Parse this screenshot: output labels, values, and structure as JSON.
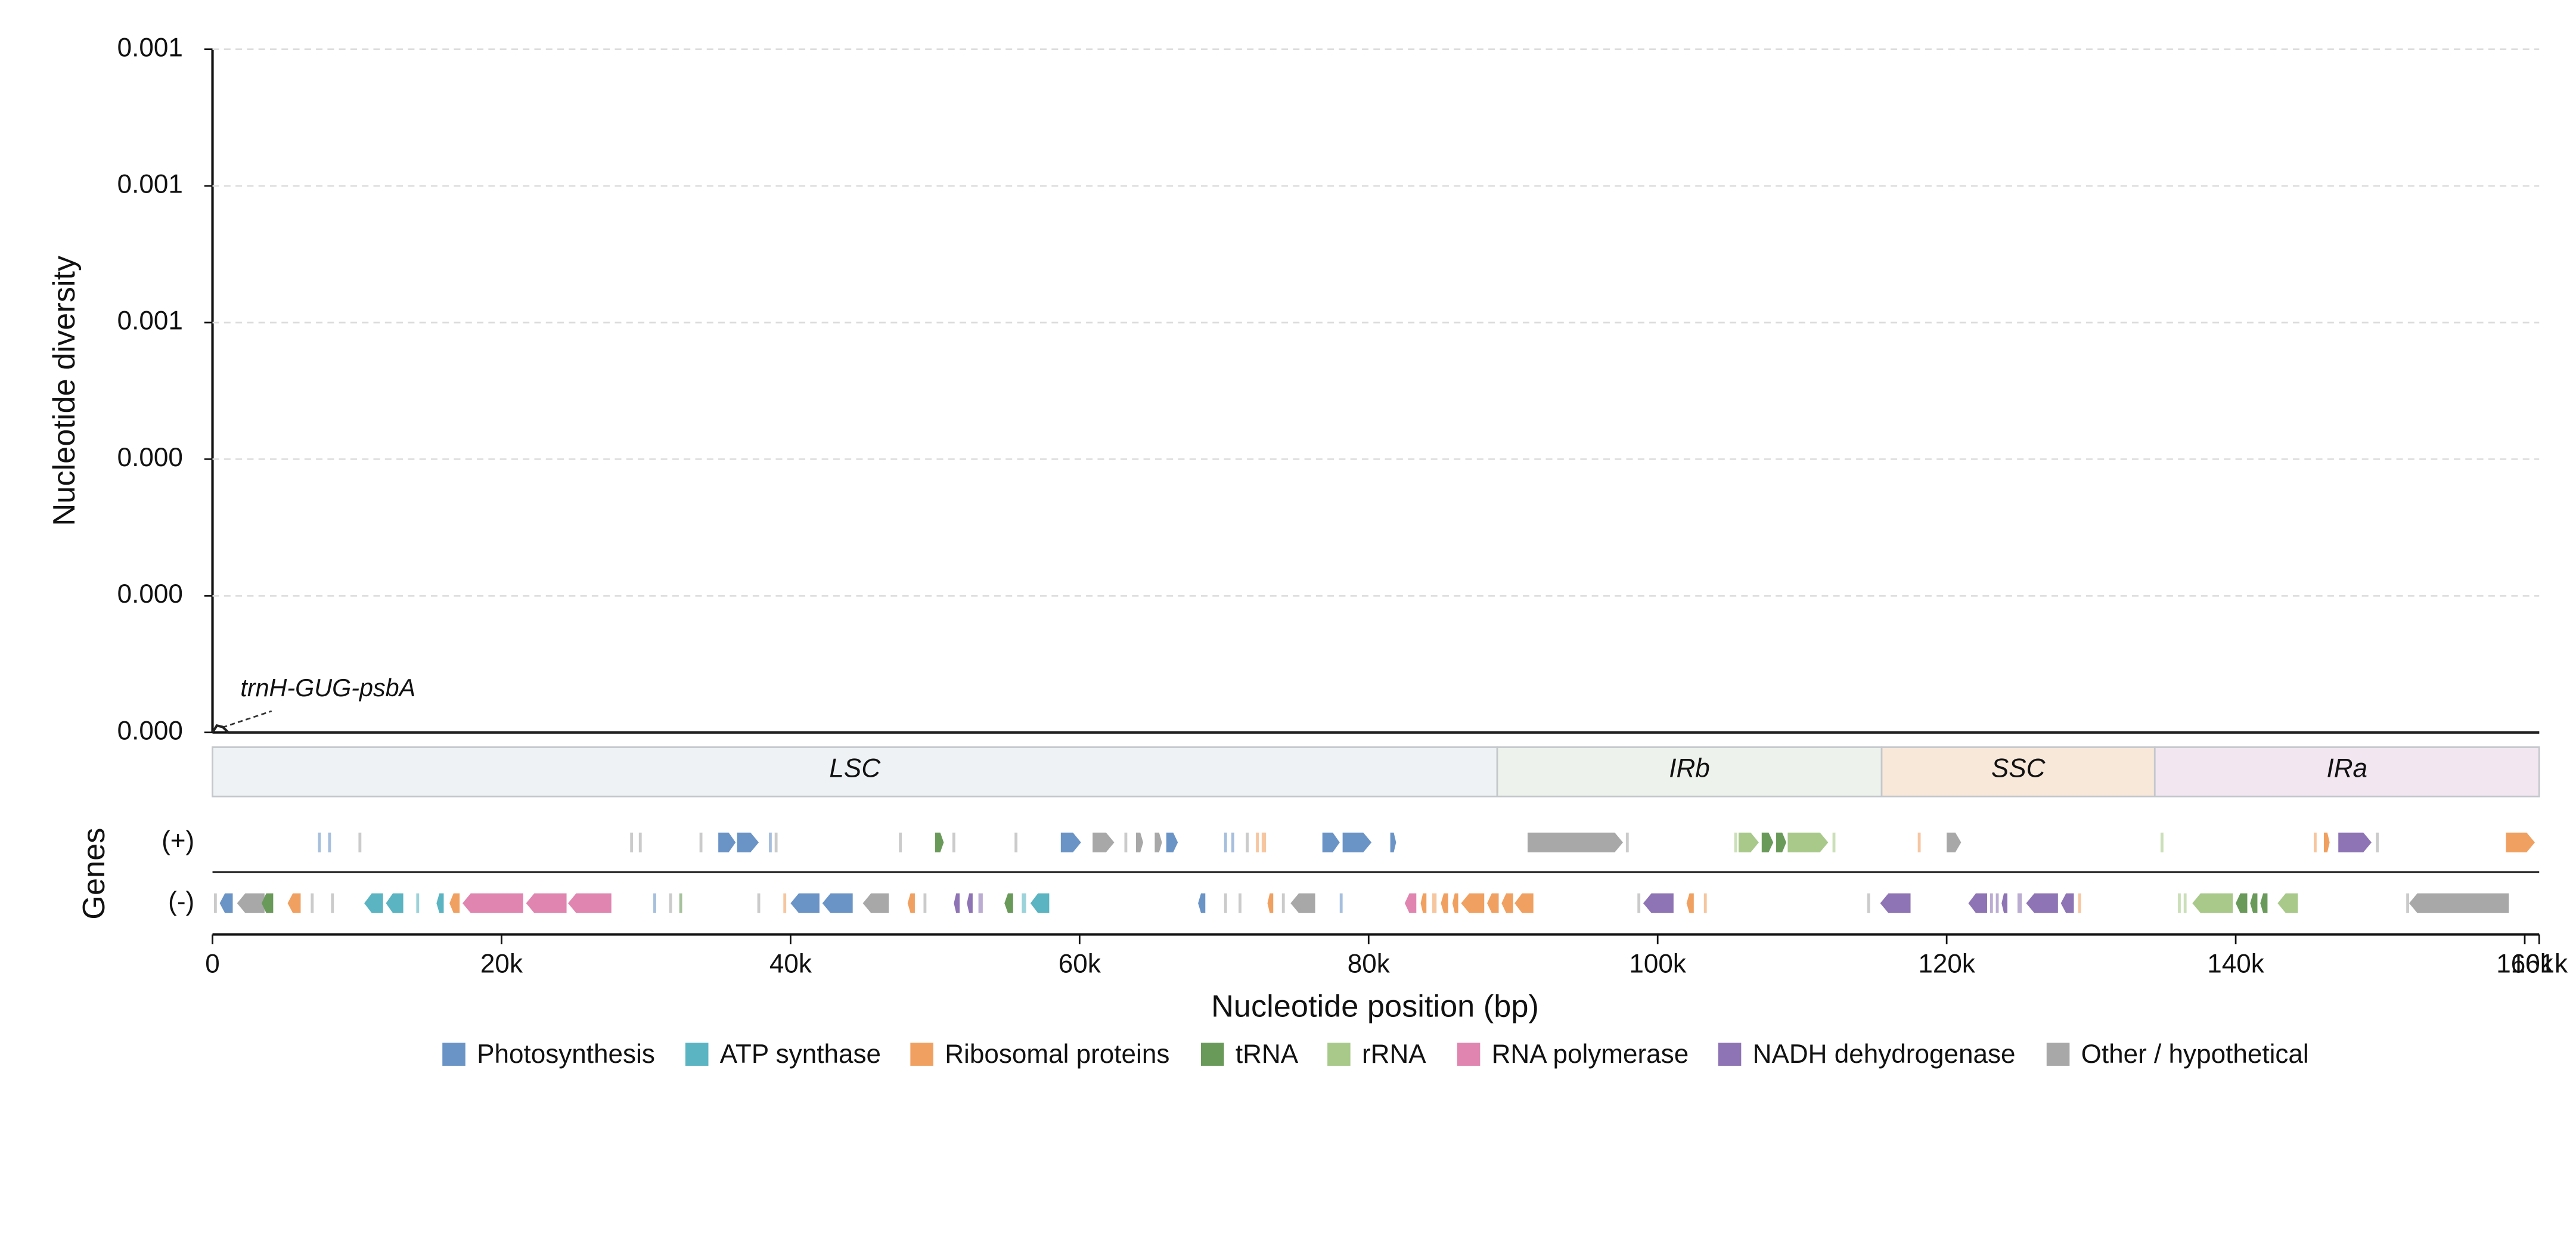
{
  "chart_data": {
    "type": "line",
    "y_label": "Nucleotide diversity",
    "x_label": "Nucleotide position (bp)",
    "genes_label": "Genes",
    "plus_label": "(+)",
    "minus_label": "(-)",
    "annotation": "trnH-GUG-psbA",
    "xlim": [
      0,
      161000
    ],
    "ylim": [
      0,
      0.001
    ],
    "yticks": [
      {
        "value": 0,
        "label": "0.000"
      },
      {
        "value": 0.0002,
        "label": "0.000"
      },
      {
        "value": 0.0004,
        "label": "0.000"
      },
      {
        "value": 0.0006,
        "label": "0.001"
      },
      {
        "value": 0.0008,
        "label": "0.001"
      },
      {
        "value": 0.001,
        "label": "0.001"
      }
    ],
    "xticks": [
      0,
      {
        "value": 20000,
        "label": "20k"
      },
      {
        "value": 40000,
        "label": "40k"
      },
      {
        "value": 60000,
        "label": "60k"
      },
      {
        "value": 80000,
        "label": "80k"
      },
      {
        "value": 100000,
        "label": "100k"
      },
      {
        "value": 120000,
        "label": "120k"
      },
      {
        "value": 140000,
        "label": "140k"
      },
      {
        "value": 160000,
        "label": "160k"
      },
      {
        "value": 161000,
        "label": "161k"
      }
    ],
    "grid": true,
    "series": [
      {
        "name": "Nucleotide diversity",
        "color": "#222222",
        "x": [
          0,
          300,
          700,
          1100,
          161000
        ],
        "values": [
          0,
          1e-05,
          8e-06,
          0,
          0
        ]
      }
    ],
    "regions": [
      {
        "name": "LSC",
        "start": 0,
        "end": 88900,
        "color": "#eef2f5"
      },
      {
        "name": "IRb",
        "start": 88900,
        "end": 115500,
        "color": "#edf3ec"
      },
      {
        "name": "SSC",
        "start": 115500,
        "end": 134400,
        "color": "#f8e8da"
      },
      {
        "name": "IRa",
        "start": 134400,
        "end": 161000,
        "color": "#f2e6f1"
      }
    ],
    "categories": [
      "Photosynthesis",
      "ATP synthase",
      "Ribosomal proteins",
      "tRNA",
      "rRNA",
      "RNA polymerase",
      "NADH dehydrogenase",
      "Other / hypothetical"
    ],
    "colors": [
      "#6a94c6",
      "#5ab4c2",
      "#f0a060",
      "#6a9a5a",
      "#a8c98a",
      "#e085b0",
      "#8e74b4",
      "#a8a8a8"
    ],
    "plus_strand": [
      [
        7300,
        7500,
        "Photosynthesis"
      ],
      [
        8000,
        8200,
        "Photosynthesis"
      ],
      [
        10100,
        10300,
        "Other / hypothetical"
      ],
      [
        28900,
        29100,
        "Other / hypothetical"
      ],
      [
        29500,
        29700,
        "Other / hypothetical"
      ],
      [
        33700,
        33900,
        "Other / hypothetical"
      ],
      [
        35000,
        36200,
        "Photosynthesis"
      ],
      [
        36300,
        37800,
        "Photosynthesis"
      ],
      [
        38500,
        38700,
        "Photosynthesis"
      ],
      [
        38900,
        39100,
        "Other / hypothetical"
      ],
      [
        47500,
        47700,
        "Other / hypothetical"
      ],
      [
        50000,
        50600,
        "tRNA"
      ],
      [
        51200,
        51400,
        "Other / hypothetical"
      ],
      [
        55500,
        55700,
        "Other / hypothetical"
      ],
      [
        58700,
        60100,
        "Photosynthesis"
      ],
      [
        60900,
        62400,
        "Other / hypothetical"
      ],
      [
        63100,
        63300,
        "Other / hypothetical"
      ],
      [
        63900,
        64400,
        "Other / hypothetical"
      ],
      [
        65200,
        65700,
        "Other / hypothetical"
      ],
      [
        66000,
        66800,
        "Photosynthesis"
      ],
      [
        70000,
        70200,
        "Photosynthesis"
      ],
      [
        70500,
        70700,
        "Photosynthesis"
      ],
      [
        71500,
        71700,
        "Other / hypothetical"
      ],
      [
        72200,
        72400,
        "Ribosomal proteins"
      ],
      [
        72600,
        72900,
        "Ribosomal proteins"
      ],
      [
        76800,
        78000,
        "Photosynthesis"
      ],
      [
        78200,
        80200,
        "Photosynthesis"
      ],
      [
        81500,
        81900,
        "Photosynthesis"
      ],
      [
        91000,
        97600,
        "Other / hypothetical"
      ],
      [
        97800,
        98000,
        "Other / hypothetical"
      ],
      [
        105300,
        105500,
        "rRNA"
      ],
      [
        105600,
        107000,
        "rRNA"
      ],
      [
        107200,
        108000,
        "tRNA"
      ],
      [
        108200,
        108900,
        "tRNA"
      ],
      [
        109000,
        111800,
        "rRNA"
      ],
      [
        112100,
        112300,
        "rRNA"
      ],
      [
        118000,
        118200,
        "Ribosomal proteins"
      ],
      [
        120000,
        121000,
        "Other / hypothetical"
      ],
      [
        134800,
        135000,
        "rRNA"
      ],
      [
        145400,
        145600,
        "Ribosomal proteins"
      ],
      [
        146100,
        146500,
        "Ribosomal proteins"
      ],
      [
        147100,
        149400,
        "NADH dehydrogenase"
      ],
      [
        149700,
        149900,
        "Other / hypothetical"
      ],
      [
        158700,
        160700,
        "Ribosomal proteins"
      ]
    ],
    "minus_strand": [
      [
        100,
        300,
        "Other / hypothetical"
      ],
      [
        500,
        1400,
        "Photosynthesis"
      ],
      [
        1700,
        3600,
        "Other / hypothetical"
      ],
      [
        3400,
        4200,
        "tRNA"
      ],
      [
        5200,
        6100,
        "Ribosomal proteins"
      ],
      [
        6800,
        7000,
        "Other / hypothetical"
      ],
      [
        8200,
        8400,
        "Other / hypothetical"
      ],
      [
        10500,
        11800,
        "ATP synthase"
      ],
      [
        12000,
        13200,
        "ATP synthase"
      ],
      [
        14100,
        14300,
        "ATP synthase"
      ],
      [
        15500,
        16000,
        "ATP synthase"
      ],
      [
        16400,
        17100,
        "Ribosomal proteins"
      ],
      [
        17300,
        21500,
        "RNA polymerase"
      ],
      [
        21700,
        24500,
        "RNA polymerase"
      ],
      [
        24600,
        27600,
        "RNA polymerase"
      ],
      [
        30500,
        30700,
        "Photosynthesis"
      ],
      [
        31600,
        31800,
        "Other / hypothetical"
      ],
      [
        32300,
        32500,
        "tRNA"
      ],
      [
        37700,
        37900,
        "Other / hypothetical"
      ],
      [
        39500,
        39700,
        "Ribosomal proteins"
      ],
      [
        40000,
        42000,
        "Photosynthesis"
      ],
      [
        42200,
        44300,
        "Photosynthesis"
      ],
      [
        45000,
        46800,
        "Other / hypothetical"
      ],
      [
        48100,
        48600,
        "Ribosomal proteins"
      ],
      [
        49200,
        49400,
        "Other / hypothetical"
      ],
      [
        51300,
        51700,
        "NADH dehydrogenase"
      ],
      [
        52200,
        52600,
        "NADH dehydrogenase"
      ],
      [
        53000,
        53300,
        "NADH dehydrogenase"
      ],
      [
        54800,
        55400,
        "tRNA"
      ],
      [
        56000,
        56300,
        "ATP synthase"
      ],
      [
        56600,
        57900,
        "ATP synthase"
      ],
      [
        68200,
        68700,
        "Photosynthesis"
      ],
      [
        70000,
        70200,
        "Other / hypothetical"
      ],
      [
        71000,
        71200,
        "Other / hypothetical"
      ],
      [
        73000,
        73400,
        "Ribosomal proteins"
      ],
      [
        74000,
        74200,
        "Other / hypothetical"
      ],
      [
        74600,
        76300,
        "Other / hypothetical"
      ],
      [
        78000,
        78200,
        "Photosynthesis"
      ],
      [
        82500,
        83300,
        "RNA polymerase"
      ],
      [
        83600,
        84000,
        "Ribosomal proteins"
      ],
      [
        84400,
        84700,
        "Ribosomal proteins"
      ],
      [
        85000,
        85500,
        "Ribosomal proteins"
      ],
      [
        85800,
        86200,
        "Ribosomal proteins"
      ],
      [
        86400,
        88000,
        "Ribosomal proteins"
      ],
      [
        88200,
        89000,
        "Ribosomal proteins"
      ],
      [
        89200,
        90000,
        "Ribosomal proteins"
      ],
      [
        90100,
        91400,
        "Ribosomal proteins"
      ],
      [
        98600,
        98800,
        "Other / hypothetical"
      ],
      [
        99000,
        101100,
        "NADH dehydrogenase"
      ],
      [
        102000,
        102500,
        "Ribosomal proteins"
      ],
      [
        103200,
        103400,
        "Ribosomal proteins"
      ],
      [
        114500,
        114700,
        "Other / hypothetical"
      ],
      [
        115400,
        117500,
        "NADH dehydrogenase"
      ],
      [
        121500,
        122800,
        "NADH dehydrogenase"
      ],
      [
        123000,
        123200,
        "NADH dehydrogenase"
      ],
      [
        123400,
        123600,
        "NADH dehydrogenase"
      ],
      [
        123800,
        124200,
        "NADH dehydrogenase"
      ],
      [
        124900,
        125200,
        "NADH dehydrogenase"
      ],
      [
        125500,
        127700,
        "NADH dehydrogenase"
      ],
      [
        127900,
        128800,
        "NADH dehydrogenase"
      ],
      [
        129100,
        129300,
        "Ribosomal proteins"
      ],
      [
        136000,
        136200,
        "rRNA"
      ],
      [
        136400,
        136600,
        "rRNA"
      ],
      [
        137000,
        139800,
        "rRNA"
      ],
      [
        140000,
        140800,
        "tRNA"
      ],
      [
        141000,
        141500,
        "tRNA"
      ],
      [
        141700,
        142200,
        "tRNA"
      ],
      [
        142900,
        144300,
        "rRNA"
      ],
      [
        151800,
        152000,
        "Other / hypothetical"
      ],
      [
        152000,
        158900,
        "Other / hypothetical"
      ]
    ]
  }
}
